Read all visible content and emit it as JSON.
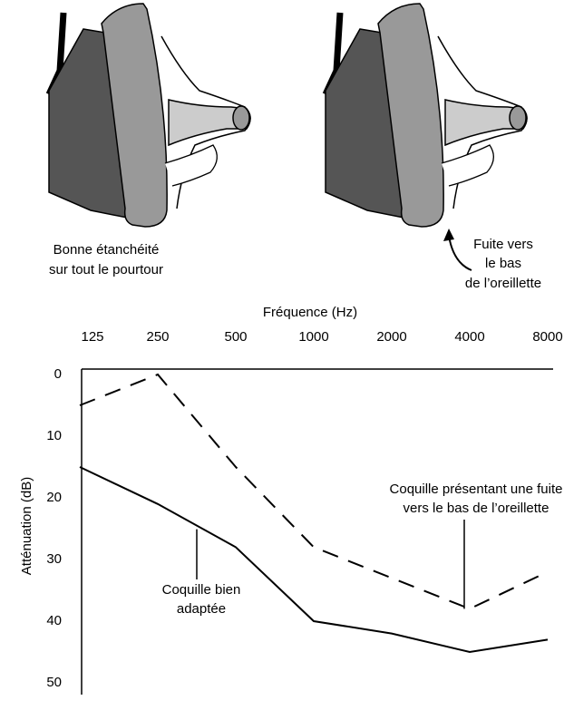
{
  "illustrations": [
    {
      "caption": [
        "Bonne étanchéité",
        "sur tout le pourtour"
      ]
    },
    {
      "caption": [
        "Fuite vers",
        "le bas",
        "de l’oreillette"
      ]
    }
  ],
  "chart_data": {
    "type": "line",
    "xlabel": "Fréquence (Hz)",
    "ylabel": "Atténuation (dB)",
    "categories": [
      "125",
      "250",
      "500",
      "1000",
      "2000",
      "4000",
      "8000"
    ],
    "ylim": [
      0,
      50
    ],
    "yticks": [
      0,
      10,
      20,
      30,
      40,
      50
    ],
    "y_inverted": true,
    "grid": false,
    "series": [
      {
        "color": "#000000",
        "dashed": true,
        "values": [
          5,
          0,
          15,
          28,
          33,
          38,
          32
        ]
      },
      {
        "color": "#000000",
        "dashed": false,
        "values": [
          15,
          21,
          28,
          40,
          42,
          45,
          43
        ]
      }
    ],
    "annotations": [
      {
        "lines": [
          "Coquille présentant une fuite",
          "vers le bas de l’oreillette"
        ],
        "series": 0,
        "category": 5
      },
      {
        "lines": [
          "Coquille bien",
          "adaptée"
        ],
        "series": 1,
        "category": 1.5
      }
    ]
  }
}
